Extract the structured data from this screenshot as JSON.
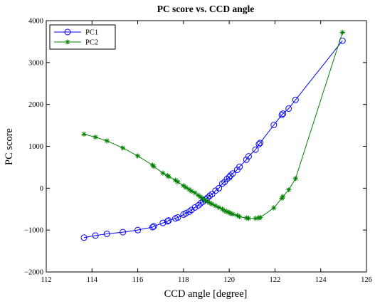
{
  "chart_data": {
    "type": "line",
    "title": "PC score vs. CCD angle",
    "xlabel": "CCD angle [degree]",
    "ylabel": "PC score",
    "xlim": [
      112,
      126
    ],
    "ylim": [
      -2000,
      4000
    ],
    "xticks": [
      112,
      114,
      116,
      118,
      120,
      122,
      124,
      126
    ],
    "yticks": [
      -2000,
      -1000,
      0,
      1000,
      2000,
      3000,
      4000
    ],
    "x_tick_labels": [
      "112",
      "114",
      "116",
      "118",
      "120",
      "122",
      "124",
      "126"
    ],
    "y_tick_labels": [
      "−2000",
      "−1000",
      "0",
      "1000",
      "2000",
      "3000",
      "4000"
    ],
    "grid": false,
    "legend_position": "top-left",
    "series": [
      {
        "name": "PC1",
        "color": "#0000ff",
        "marker": "circle",
        "points": [
          [
            113.65,
            -1180
          ],
          [
            114.15,
            -1130
          ],
          [
            114.65,
            -1090
          ],
          [
            115.35,
            -1050
          ],
          [
            116.0,
            -1000
          ],
          [
            116.65,
            -930
          ],
          [
            116.7,
            -910
          ],
          [
            117.1,
            -830
          ],
          [
            117.3,
            -790
          ],
          [
            117.35,
            -770
          ],
          [
            117.65,
            -720
          ],
          [
            117.75,
            -700
          ],
          [
            118.0,
            -630
          ],
          [
            118.1,
            -600
          ],
          [
            118.25,
            -560
          ],
          [
            118.35,
            -520
          ],
          [
            118.5,
            -460
          ],
          [
            118.65,
            -410
          ],
          [
            118.75,
            -360
          ],
          [
            118.85,
            -320
          ],
          [
            118.95,
            -270
          ],
          [
            119.05,
            -230
          ],
          [
            119.15,
            -180
          ],
          [
            119.25,
            -140
          ],
          [
            119.4,
            -60
          ],
          [
            119.55,
            0
          ],
          [
            119.7,
            110
          ],
          [
            119.8,
            150
          ],
          [
            119.9,
            220
          ],
          [
            120.0,
            260
          ],
          [
            120.05,
            300
          ],
          [
            120.15,
            350
          ],
          [
            120.35,
            440
          ],
          [
            120.45,
            510
          ],
          [
            120.75,
            680
          ],
          [
            120.85,
            760
          ],
          [
            121.15,
            920
          ],
          [
            121.3,
            1050
          ],
          [
            121.35,
            1080
          ],
          [
            121.95,
            1510
          ],
          [
            122.3,
            1750
          ],
          [
            122.35,
            1780
          ],
          [
            122.6,
            1900
          ],
          [
            122.9,
            2110
          ],
          [
            124.95,
            3520
          ]
        ]
      },
      {
        "name": "PC2",
        "color": "#008000",
        "marker": "star",
        "points": [
          [
            113.65,
            1290
          ],
          [
            114.15,
            1220
          ],
          [
            114.65,
            1130
          ],
          [
            115.35,
            960
          ],
          [
            116.0,
            770
          ],
          [
            116.65,
            550
          ],
          [
            116.7,
            520
          ],
          [
            117.1,
            360
          ],
          [
            117.3,
            300
          ],
          [
            117.35,
            280
          ],
          [
            117.65,
            190
          ],
          [
            117.75,
            150
          ],
          [
            118.0,
            60
          ],
          [
            118.1,
            20
          ],
          [
            118.25,
            -30
          ],
          [
            118.35,
            -70
          ],
          [
            118.5,
            -110
          ],
          [
            118.65,
            -170
          ],
          [
            118.75,
            -210
          ],
          [
            118.85,
            -250
          ],
          [
            118.95,
            -290
          ],
          [
            119.05,
            -320
          ],
          [
            119.15,
            -350
          ],
          [
            119.25,
            -380
          ],
          [
            119.4,
            -420
          ],
          [
            119.55,
            -460
          ],
          [
            119.7,
            -500
          ],
          [
            119.8,
            -540
          ],
          [
            119.9,
            -560
          ],
          [
            120.0,
            -580
          ],
          [
            120.05,
            -600
          ],
          [
            120.15,
            -620
          ],
          [
            120.35,
            -650
          ],
          [
            120.45,
            -680
          ],
          [
            120.75,
            -710
          ],
          [
            120.85,
            -720
          ],
          [
            121.15,
            -720
          ],
          [
            121.3,
            -710
          ],
          [
            121.35,
            -700
          ],
          [
            121.95,
            -470
          ],
          [
            122.3,
            -240
          ],
          [
            122.35,
            -200
          ],
          [
            122.6,
            -40
          ],
          [
            122.9,
            230
          ],
          [
            124.95,
            3720
          ]
        ]
      }
    ]
  }
}
